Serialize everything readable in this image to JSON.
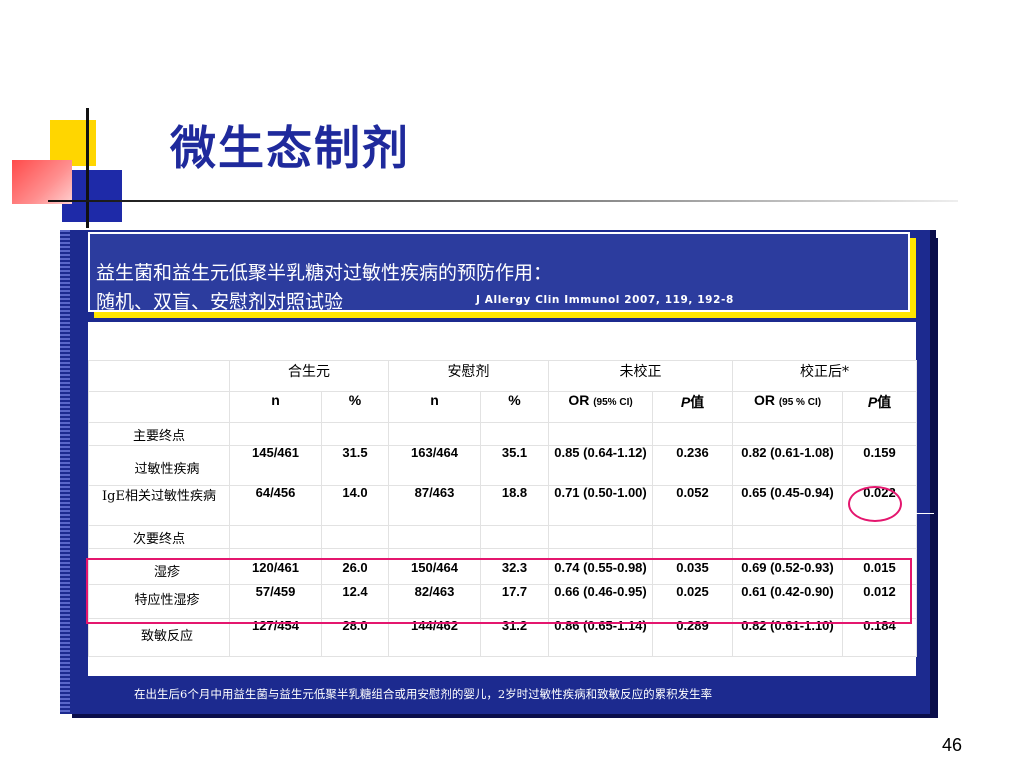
{
  "title": "微生态制剂",
  "header": {
    "line1": "益生菌和益生元低聚半乳糖对过敏性疾病的预防作用：",
    "line2": "随机、双盲、安慰剂对照试验",
    "citation": "J Allergy Clin Immunol 2007, 119, 192-8"
  },
  "table": {
    "group_headers": {
      "synbiotic": "合生元",
      "placebo": "安慰剂",
      "unadjusted": "未校正",
      "adjusted": "校正后*"
    },
    "sub_headers": {
      "n": "n",
      "pct": "%",
      "or": "OR",
      "or_ci_unadj": "(95% CI)",
      "or_ci_adj": "(95 % CI)",
      "p_italic": "P",
      "p_suffix": "值"
    },
    "sections": {
      "primary": "主要终点",
      "secondary": "次要终点"
    },
    "rows": [
      {
        "label": "过敏性疾病",
        "syn_n": "145/461",
        "syn_pct": "31.5",
        "pla_n": "163/464",
        "pla_pct": "35.1",
        "or_unadj": "0.85 (0.64-1.12)",
        "p_unadj": "0.236",
        "or_adj": "0.82 (0.61-1.08)",
        "p_adj": "0.159"
      },
      {
        "label": "IgE相关过敏性疾病",
        "syn_n": "64/456",
        "syn_pct": "14.0",
        "pla_n": "87/463",
        "pla_pct": "18.8",
        "or_unadj": "0.71 (0.50-1.00)",
        "p_unadj": "0.052",
        "or_adj": "0.65 (0.45-0.94)",
        "p_adj": "0.022"
      },
      {
        "label": "湿疹",
        "syn_n": "120/461",
        "syn_pct": "26.0",
        "pla_n": "150/464",
        "pla_pct": "32.3",
        "or_unadj": "0.74 (0.55-0.98)",
        "p_unadj": "0.035",
        "or_adj": "0.69 (0.52-0.93)",
        "p_adj": "0.015"
      },
      {
        "label": "特应性湿疹",
        "syn_n": "57/459",
        "syn_pct": "12.4",
        "pla_n": "82/463",
        "pla_pct": "17.7",
        "or_unadj": "0.66 (0.46-0.95)",
        "p_unadj": "0.025",
        "or_adj": "0.61 (0.42-0.90)",
        "p_adj": "0.012"
      },
      {
        "label": "致敏反应",
        "syn_n": "127/454",
        "syn_pct": "28.0",
        "pla_n": "144/462",
        "pla_pct": "31.2",
        "or_unadj": "0.86 (0.65-1.14)",
        "p_unadj": "0.289",
        "or_adj": "0.82 (0.61-1.10)",
        "p_adj": "0.184"
      }
    ]
  },
  "footnote": "在出生后6个月中用益生菌与益生元低聚半乳糖组合或用安慰剂的婴儿，2岁时过敏性疾病和致敏反应的累积发生率",
  "page_number": "46",
  "colors": {
    "title": "#1f2a9c",
    "panel": "#1c2a8f",
    "header_box": "#2c3c9e",
    "header_shadow": "#ffe600",
    "highlight": "#e4166e"
  }
}
